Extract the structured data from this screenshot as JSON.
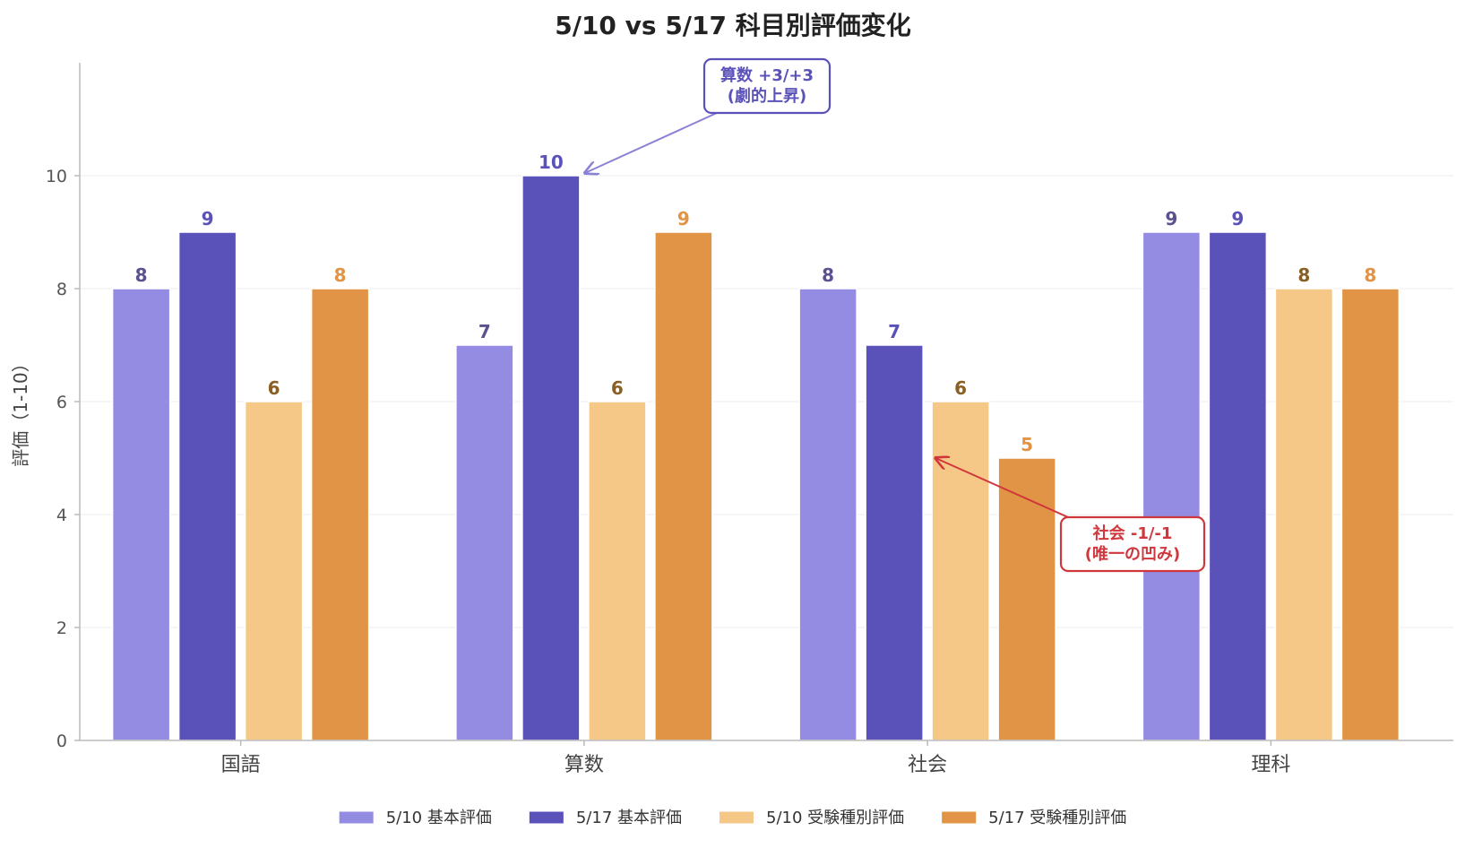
{
  "chart_data": {
    "type": "bar",
    "title": "5/10 vs 5/17 科目別評価変化",
    "ylabel": "評価（1-10）",
    "xlabel": "",
    "ylim": [
      0,
      12
    ],
    "yticks": [
      0,
      2,
      4,
      6,
      8,
      10
    ],
    "categories": [
      "国語",
      "算数",
      "社会",
      "理科"
    ],
    "series": [
      {
        "name": "5/10 基本評価",
        "values": [
          8,
          7,
          8,
          9
        ],
        "color": "#938ce2",
        "label_color": "#5a5290"
      },
      {
        "name": "5/17 基本評価",
        "values": [
          9,
          10,
          7,
          9
        ],
        "color": "#5b52b9",
        "label_color": "#5b52b9"
      },
      {
        "name": "5/10 受験種別評価",
        "values": [
          6,
          6,
          6,
          8
        ],
        "color": "#f6c887",
        "label_color": "#8a5f24"
      },
      {
        "name": "5/17 受験種別評価",
        "values": [
          8,
          9,
          5,
          8
        ],
        "color": "#e19445",
        "label_color": "#e19445"
      }
    ],
    "grid": "horizontal",
    "legend": "bottom-center",
    "annotations": [
      {
        "text": [
          "算数 +3/+3",
          "(劇的上昇)"
        ],
        "category": "算数",
        "series": 1,
        "value": 10,
        "color": "#5b52b9",
        "arrow_color": "#8a82d6"
      },
      {
        "text": [
          "社会 -1/-1",
          "(唯一の凹み)"
        ],
        "category": "社会",
        "series": 2,
        "value": 5,
        "color": "#d0373c",
        "arrow_color": "#d0373c"
      }
    ]
  }
}
